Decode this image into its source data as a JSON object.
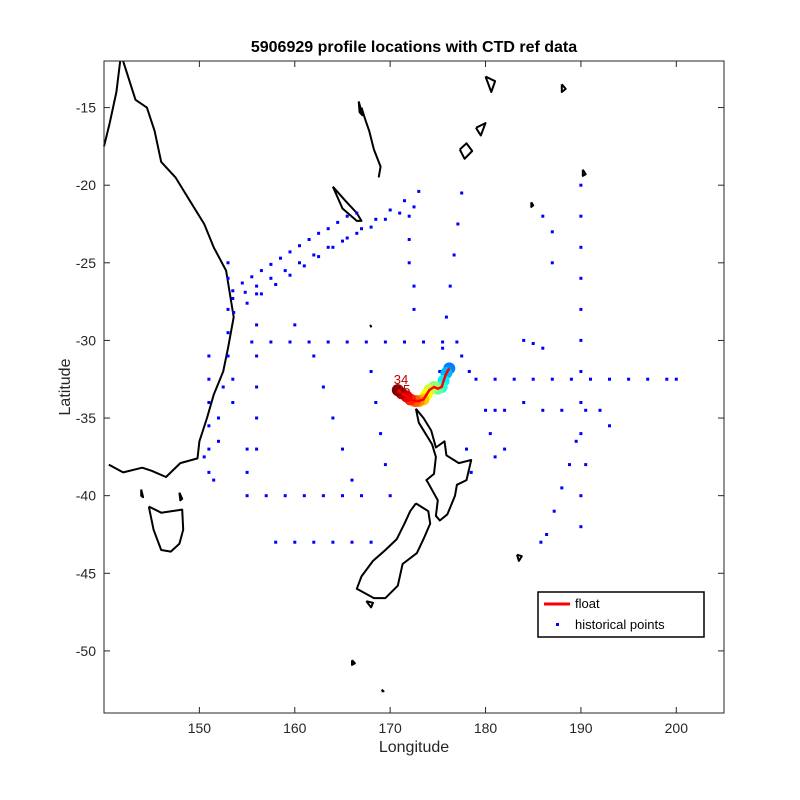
{
  "chart_data": {
    "type": "scatter",
    "title": "5906929 profile locations with CTD ref data",
    "xlabel": "Longitude",
    "ylabel": "Latitude",
    "xlim": [
      140,
      205
    ],
    "ylim": [
      -54,
      -12
    ],
    "xticks": [
      150,
      160,
      170,
      180,
      190,
      200
    ],
    "yticks": [
      -15,
      -20,
      -25,
      -30,
      -35,
      -40,
      -45,
      -50
    ],
    "grid": false,
    "legend": {
      "placement": "bottom-right",
      "entries": [
        {
          "label": "float",
          "color": "#ff0000",
          "style": "line"
        },
        {
          "label": "historical points",
          "color": "#0000ff",
          "style": "dot"
        }
      ]
    },
    "float_track": [
      [
        176.2,
        -31.8
      ],
      [
        175.9,
        -32.1
      ],
      [
        175.6,
        -32.6
      ],
      [
        175.4,
        -33.0
      ],
      [
        175.0,
        -33.1
      ],
      [
        174.6,
        -33.0
      ],
      [
        174.1,
        -33.2
      ],
      [
        173.8,
        -33.5
      ],
      [
        173.5,
        -33.8
      ],
      [
        173.0,
        -33.9
      ],
      [
        172.6,
        -33.9
      ],
      [
        172.1,
        -33.8
      ],
      [
        171.7,
        -33.6
      ],
      [
        171.2,
        -33.4
      ],
      [
        170.8,
        -33.2
      ]
    ],
    "profile_labels": [
      "34",
      "35"
    ],
    "historical_points": [
      [
        153.5,
        -26.8
      ],
      [
        154.5,
        -26.3
      ],
      [
        155.5,
        -25.9
      ],
      [
        156.5,
        -25.5
      ],
      [
        157.5,
        -25.1
      ],
      [
        158.5,
        -24.7
      ],
      [
        159.5,
        -24.3
      ],
      [
        160.5,
        -23.9
      ],
      [
        161.5,
        -23.5
      ],
      [
        162.5,
        -23.1
      ],
      [
        163.5,
        -22.8
      ],
      [
        164.5,
        -22.4
      ],
      [
        165.5,
        -22.0
      ],
      [
        166.5,
        -21.8
      ],
      [
        153.5,
        -27.3
      ],
      [
        154.8,
        -26.9
      ],
      [
        156.0,
        -26.5
      ],
      [
        157.5,
        -26.0
      ],
      [
        159.0,
        -25.5
      ],
      [
        160.5,
        -25.0
      ],
      [
        162.0,
        -24.5
      ],
      [
        163.5,
        -24.0
      ],
      [
        165.0,
        -23.6
      ],
      [
        166.5,
        -23.1
      ],
      [
        168.0,
        -22.7
      ],
      [
        169.5,
        -22.2
      ],
      [
        171.0,
        -21.8
      ],
      [
        172.5,
        -21.4
      ],
      [
        153.6,
        -28.2
      ],
      [
        155.0,
        -27.6
      ],
      [
        156.5,
        -27.0
      ],
      [
        158.0,
        -26.4
      ],
      [
        159.5,
        -25.8
      ],
      [
        161.0,
        -25.2
      ],
      [
        162.5,
        -24.6
      ],
      [
        164.0,
        -24.0
      ],
      [
        165.5,
        -23.4
      ],
      [
        167.0,
        -22.8
      ],
      [
        168.5,
        -22.2
      ],
      [
        170.0,
        -21.6
      ],
      [
        171.5,
        -21.0
      ],
      [
        173.0,
        -20.4
      ],
      [
        155.5,
        -30.1
      ],
      [
        157.5,
        -30.1
      ],
      [
        159.5,
        -30.1
      ],
      [
        161.5,
        -30.1
      ],
      [
        163.5,
        -30.1
      ],
      [
        165.5,
        -30.1
      ],
      [
        167.5,
        -30.1
      ],
      [
        169.5,
        -30.1
      ],
      [
        171.5,
        -30.1
      ],
      [
        173.5,
        -30.1
      ],
      [
        175.5,
        -30.1
      ],
      [
        177.0,
        -30.1
      ],
      [
        177.5,
        -31.0
      ],
      [
        178.3,
        -32.0
      ],
      [
        179.0,
        -32.5
      ],
      [
        181.0,
        -32.5
      ],
      [
        183.0,
        -32.5
      ],
      [
        185.0,
        -32.5
      ],
      [
        187.0,
        -32.5
      ],
      [
        189.0,
        -32.5
      ],
      [
        191.0,
        -32.5
      ],
      [
        193.0,
        -32.5
      ],
      [
        195.0,
        -32.5
      ],
      [
        197.0,
        -32.5
      ],
      [
        199.0,
        -32.5
      ],
      [
        200.0,
        -32.5
      ],
      [
        190.0,
        -20.0
      ],
      [
        190.0,
        -22.0
      ],
      [
        190.0,
        -24.0
      ],
      [
        190.0,
        -26.0
      ],
      [
        190.0,
        -28.0
      ],
      [
        190.0,
        -30.0
      ],
      [
        190.0,
        -32.0
      ],
      [
        190.0,
        -34.0
      ],
      [
        190.0,
        -36.0
      ],
      [
        189.5,
        -36.5
      ],
      [
        188.8,
        -38.0
      ],
      [
        188.0,
        -39.5
      ],
      [
        187.2,
        -41.0
      ],
      [
        186.4,
        -42.5
      ],
      [
        185.8,
        -43.0
      ],
      [
        177.5,
        -20.5
      ],
      [
        177.1,
        -22.5
      ],
      [
        176.7,
        -24.5
      ],
      [
        176.3,
        -26.5
      ],
      [
        175.9,
        -28.5
      ],
      [
        175.5,
        -30.5
      ],
      [
        175.2,
        -32.0
      ],
      [
        172.0,
        -22.0
      ],
      [
        172.0,
        -23.5
      ],
      [
        172.0,
        -25.0
      ],
      [
        172.5,
        -26.5
      ],
      [
        172.5,
        -28.0
      ],
      [
        151.0,
        -31.0
      ],
      [
        151.0,
        -32.5
      ],
      [
        151.0,
        -34.0
      ],
      [
        151.0,
        -35.5
      ],
      [
        151.0,
        -37.0
      ],
      [
        151.0,
        -38.5
      ],
      [
        152.0,
        -35.0
      ],
      [
        152.5,
        -33.0
      ],
      [
        152.0,
        -36.5
      ],
      [
        150.5,
        -37.5
      ],
      [
        151.5,
        -39.0
      ],
      [
        153.0,
        -25.0
      ],
      [
        153.0,
        -26.0
      ],
      [
        153.0,
        -28.0
      ],
      [
        153.0,
        -29.5
      ],
      [
        153.0,
        -31.0
      ],
      [
        153.5,
        -32.5
      ],
      [
        153.5,
        -34.0
      ],
      [
        156.0,
        -27.0
      ],
      [
        156.0,
        -29.0
      ],
      [
        156.0,
        -31.0
      ],
      [
        156.0,
        -33.0
      ],
      [
        156.0,
        -35.0
      ],
      [
        156.0,
        -37.0
      ],
      [
        155.0,
        -37.0
      ],
      [
        155.0,
        -38.5
      ],
      [
        155.0,
        -40.0
      ],
      [
        157.0,
        -40.0
      ],
      [
        159.0,
        -40.0
      ],
      [
        161.0,
        -40.0
      ],
      [
        163.0,
        -40.0
      ],
      [
        165.0,
        -40.0
      ],
      [
        167.0,
        -40.0
      ],
      [
        158.0,
        -43.0
      ],
      [
        160.0,
        -43.0
      ],
      [
        162.0,
        -43.0
      ],
      [
        164.0,
        -43.0
      ],
      [
        166.0,
        -43.0
      ],
      [
        168.0,
        -43.0
      ],
      [
        160.0,
        -29.0
      ],
      [
        162.0,
        -31.0
      ],
      [
        163.0,
        -33.0
      ],
      [
        164.0,
        -35.0
      ],
      [
        165.0,
        -37.0
      ],
      [
        166.0,
        -39.0
      ],
      [
        168.0,
        -32.0
      ],
      [
        168.5,
        -34.0
      ],
      [
        169.0,
        -36.0
      ],
      [
        169.5,
        -38.0
      ],
      [
        170.0,
        -40.0
      ],
      [
        180.0,
        -34.5
      ],
      [
        181.0,
        -34.5
      ],
      [
        182.0,
        -34.5
      ],
      [
        180.5,
        -36.0
      ],
      [
        181.0,
        -37.5
      ],
      [
        182.0,
        -37.0
      ],
      [
        184.0,
        -34.0
      ],
      [
        186.0,
        -34.5
      ],
      [
        188.0,
        -34.5
      ],
      [
        190.5,
        -34.5
      ],
      [
        192.0,
        -34.5
      ],
      [
        193.0,
        -35.5
      ],
      [
        184.0,
        -30.0
      ],
      [
        185.0,
        -30.2
      ],
      [
        186.0,
        -30.5
      ],
      [
        187.0,
        -25.0
      ],
      [
        187.0,
        -23.0
      ],
      [
        186.0,
        -22.0
      ],
      [
        190.5,
        -38.0
      ],
      [
        190.0,
        -40.0
      ],
      [
        190.0,
        -42.0
      ],
      [
        178.0,
        -37.0
      ],
      [
        178.5,
        -38.5
      ]
    ],
    "coastline_name": "coastline"
  }
}
